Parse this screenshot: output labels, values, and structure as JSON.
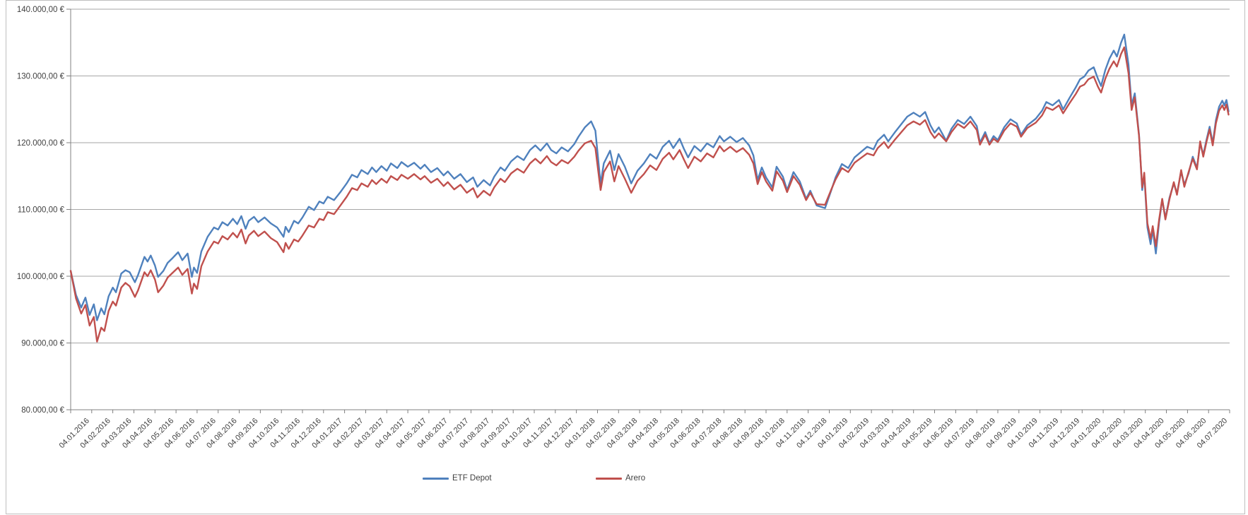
{
  "chart_data": {
    "type": "line",
    "title": "",
    "currency": "EUR",
    "value_unit": "thousand EUR",
    "grid": "horizontal-on",
    "legend_position": "bottom-center",
    "ylabel": "",
    "xlabel": "",
    "y_axis": {
      "min_k": 80,
      "max_k": 140,
      "step_k": 10,
      "tick_labels": [
        "140.000,00 €",
        "130.000,00 €",
        "120.000,00 €",
        "110.000,00 €",
        "100.000,00 €",
        "90.000,00 €",
        "80.000,00 €"
      ]
    },
    "x_axis": {
      "slot_count": 55,
      "tick_labels": [
        "04.01.2016",
        "04.02.2016",
        "04.03.2016",
        "04.04.2016",
        "04.05.2016",
        "04.06.2016",
        "04.07.2016",
        "04.08.2016",
        "04.09.2016",
        "04.10.2016",
        "04.11.2016",
        "04.12.2016",
        "04.01.2017",
        "04.02.2017",
        "04.03.2017",
        "04.04.2017",
        "04.05.2017",
        "04.06.2017",
        "04.07.2017",
        "04.08.2017",
        "04.09.2017",
        "04.10.2017",
        "04.11.2017",
        "04.12.2017",
        "04.01.2018",
        "04.02.2018",
        "04.03.2018",
        "04.04.2018",
        "04.05.2018",
        "04.06.2018",
        "04.07.2018",
        "04.08.2018",
        "04.09.2018",
        "04.10.2018",
        "04.11.2018",
        "04.12.2018",
        "04.01.2019",
        "04.02.2019",
        "04.03.2019",
        "04.04.2019",
        "04.05.2019",
        "04.06.2019",
        "04.07.2019",
        "04.08.2019",
        "04.09.2019",
        "04.10.2019",
        "04.11.2019",
        "04.12.2019",
        "04.01.2020",
        "04.02.2020",
        "04.03.2020",
        "04.04.2020",
        "04.05.2020",
        "04.06.2020",
        "04.07.2020"
      ]
    },
    "series": [
      {
        "name": "ETF Depot",
        "color": "#4F81BD"
      },
      {
        "name": "Arero",
        "color": "#C0504D"
      }
    ],
    "points_format": [
      "t_months_since_04.01.2016",
      "ETF Depot (k EUR)",
      "Arero (k EUR)"
    ],
    "points": [
      [
        0.0,
        100.8,
        100.8
      ],
      [
        0.25,
        97.2,
        96.7
      ],
      [
        0.5,
        95.3,
        94.4
      ],
      [
        0.7,
        96.8,
        95.7
      ],
      [
        0.9,
        94.2,
        92.6
      ],
      [
        1.1,
        95.8,
        93.9
      ],
      [
        1.25,
        93.4,
        90.2
      ],
      [
        1.45,
        95.2,
        92.3
      ],
      [
        1.6,
        94.3,
        91.8
      ],
      [
        1.8,
        97.0,
        94.8
      ],
      [
        2.0,
        98.3,
        96.2
      ],
      [
        2.15,
        97.6,
        95.6
      ],
      [
        2.4,
        100.4,
        98.3
      ],
      [
        2.6,
        100.9,
        99.0
      ],
      [
        2.8,
        100.6,
        98.5
      ],
      [
        3.05,
        99.1,
        96.9
      ],
      [
        3.2,
        100.2,
        97.9
      ],
      [
        3.5,
        102.9,
        100.6
      ],
      [
        3.65,
        102.2,
        100.0
      ],
      [
        3.8,
        103.1,
        100.9
      ],
      [
        4.0,
        101.6,
        99.5
      ],
      [
        4.15,
        99.9,
        97.6
      ],
      [
        4.4,
        100.8,
        98.6
      ],
      [
        4.6,
        102.0,
        99.8
      ],
      [
        4.8,
        102.6,
        100.4
      ],
      [
        5.1,
        103.6,
        101.3
      ],
      [
        5.3,
        102.4,
        100.2
      ],
      [
        5.55,
        103.4,
        101.1
      ],
      [
        5.75,
        99.9,
        97.4
      ],
      [
        5.85,
        101.3,
        98.9
      ],
      [
        6.0,
        100.5,
        98.1
      ],
      [
        6.2,
        103.7,
        101.5
      ],
      [
        6.5,
        105.9,
        103.7
      ],
      [
        6.8,
        107.3,
        105.2
      ],
      [
        7.0,
        107.0,
        104.9
      ],
      [
        7.2,
        108.1,
        106.0
      ],
      [
        7.45,
        107.6,
        105.5
      ],
      [
        7.7,
        108.6,
        106.5
      ],
      [
        7.9,
        107.8,
        105.8
      ],
      [
        8.1,
        109.0,
        107.0
      ],
      [
        8.3,
        107.1,
        104.9
      ],
      [
        8.45,
        108.3,
        106.1
      ],
      [
        8.7,
        108.9,
        106.8
      ],
      [
        8.9,
        108.1,
        106.0
      ],
      [
        9.2,
        108.8,
        106.7
      ],
      [
        9.5,
        107.9,
        105.7
      ],
      [
        9.8,
        107.3,
        105.1
      ],
      [
        10.1,
        105.9,
        103.6
      ],
      [
        10.2,
        107.4,
        105.0
      ],
      [
        10.35,
        106.6,
        104.1
      ],
      [
        10.6,
        108.3,
        105.5
      ],
      [
        10.8,
        107.9,
        105.2
      ],
      [
        11.0,
        108.8,
        106.1
      ],
      [
        11.3,
        110.4,
        107.6
      ],
      [
        11.55,
        109.9,
        107.3
      ],
      [
        11.8,
        111.2,
        108.6
      ],
      [
        12.0,
        110.9,
        108.4
      ],
      [
        12.2,
        111.9,
        109.6
      ],
      [
        12.5,
        111.4,
        109.3
      ],
      [
        12.8,
        112.6,
        110.6
      ],
      [
        13.1,
        113.9,
        111.9
      ],
      [
        13.35,
        115.2,
        113.2
      ],
      [
        13.6,
        114.8,
        112.9
      ],
      [
        13.8,
        115.9,
        113.9
      ],
      [
        14.1,
        115.3,
        113.4
      ],
      [
        14.3,
        116.3,
        114.4
      ],
      [
        14.5,
        115.6,
        113.8
      ],
      [
        14.75,
        116.5,
        114.6
      ],
      [
        15.0,
        115.8,
        114.0
      ],
      [
        15.2,
        116.9,
        115.0
      ],
      [
        15.5,
        116.2,
        114.4
      ],
      [
        15.7,
        117.1,
        115.2
      ],
      [
        16.0,
        116.4,
        114.6
      ],
      [
        16.3,
        117.0,
        115.3
      ],
      [
        16.6,
        116.1,
        114.5
      ],
      [
        16.8,
        116.7,
        115.0
      ],
      [
        17.1,
        115.6,
        114.0
      ],
      [
        17.4,
        116.2,
        114.6
      ],
      [
        17.7,
        115.1,
        113.5
      ],
      [
        17.9,
        115.7,
        114.1
      ],
      [
        18.2,
        114.6,
        113.0
      ],
      [
        18.5,
        115.3,
        113.7
      ],
      [
        18.8,
        114.1,
        112.5
      ],
      [
        19.1,
        114.8,
        113.2
      ],
      [
        19.3,
        113.4,
        111.8
      ],
      [
        19.6,
        114.4,
        112.8
      ],
      [
        19.9,
        113.6,
        112.1
      ],
      [
        20.1,
        114.9,
        113.3
      ],
      [
        20.4,
        116.3,
        114.6
      ],
      [
        20.6,
        115.8,
        114.1
      ],
      [
        20.9,
        117.2,
        115.4
      ],
      [
        21.2,
        118.0,
        116.1
      ],
      [
        21.5,
        117.4,
        115.5
      ],
      [
        21.8,
        118.9,
        116.9
      ],
      [
        22.05,
        119.6,
        117.6
      ],
      [
        22.3,
        118.8,
        116.9
      ],
      [
        22.6,
        119.9,
        118.0
      ],
      [
        22.8,
        118.9,
        117.1
      ],
      [
        23.05,
        118.4,
        116.6
      ],
      [
        23.3,
        119.3,
        117.4
      ],
      [
        23.6,
        118.7,
        116.9
      ],
      [
        23.9,
        119.8,
        117.9
      ],
      [
        24.1,
        120.9,
        118.8
      ],
      [
        24.4,
        122.3,
        119.9
      ],
      [
        24.7,
        123.2,
        120.3
      ],
      [
        24.9,
        121.8,
        119.2
      ],
      [
        25.15,
        113.8,
        112.9
      ],
      [
        25.3,
        116.9,
        115.6
      ],
      [
        25.6,
        118.8,
        117.2
      ],
      [
        25.8,
        115.9,
        114.2
      ],
      [
        26.0,
        118.3,
        116.5
      ],
      [
        26.3,
        116.4,
        114.6
      ],
      [
        26.6,
        113.9,
        112.5
      ],
      [
        26.9,
        115.8,
        114.3
      ],
      [
        27.2,
        116.9,
        115.3
      ],
      [
        27.5,
        118.3,
        116.6
      ],
      [
        27.8,
        117.6,
        115.9
      ],
      [
        28.1,
        119.4,
        117.6
      ],
      [
        28.4,
        120.3,
        118.5
      ],
      [
        28.6,
        119.2,
        117.5
      ],
      [
        28.9,
        120.6,
        118.9
      ],
      [
        29.1,
        119.1,
        117.5
      ],
      [
        29.3,
        117.8,
        116.2
      ],
      [
        29.6,
        119.5,
        117.9
      ],
      [
        29.9,
        118.7,
        117.2
      ],
      [
        30.2,
        119.9,
        118.4
      ],
      [
        30.5,
        119.3,
        117.8
      ],
      [
        30.8,
        121.0,
        119.5
      ],
      [
        31.0,
        120.2,
        118.7
      ],
      [
        31.3,
        120.9,
        119.4
      ],
      [
        31.6,
        120.1,
        118.6
      ],
      [
        31.9,
        120.7,
        119.2
      ],
      [
        32.2,
        119.6,
        118.2
      ],
      [
        32.4,
        118.1,
        116.9
      ],
      [
        32.6,
        114.4,
        113.8
      ],
      [
        32.8,
        116.3,
        115.6
      ],
      [
        33.0,
        114.8,
        114.2
      ],
      [
        33.3,
        113.3,
        112.8
      ],
      [
        33.5,
        116.4,
        115.7
      ],
      [
        33.8,
        114.9,
        114.3
      ],
      [
        34.0,
        112.9,
        112.6
      ],
      [
        34.3,
        115.6,
        115.0
      ],
      [
        34.6,
        114.2,
        113.7
      ],
      [
        34.9,
        111.6,
        111.4
      ],
      [
        35.1,
        112.8,
        112.5
      ],
      [
        35.4,
        110.6,
        110.8
      ],
      [
        35.8,
        110.2,
        110.7
      ],
      [
        36.1,
        112.9,
        113.0
      ],
      [
        36.3,
        114.8,
        114.5
      ],
      [
        36.6,
        116.8,
        116.2
      ],
      [
        36.9,
        116.2,
        115.6
      ],
      [
        37.2,
        117.8,
        117.0
      ],
      [
        37.5,
        118.6,
        117.7
      ],
      [
        37.8,
        119.4,
        118.4
      ],
      [
        38.1,
        119.0,
        118.1
      ],
      [
        38.3,
        120.3,
        119.2
      ],
      [
        38.6,
        121.2,
        120.1
      ],
      [
        38.8,
        120.2,
        119.2
      ],
      [
        39.1,
        121.5,
        120.4
      ],
      [
        39.4,
        122.7,
        121.5
      ],
      [
        39.7,
        123.9,
        122.6
      ],
      [
        40.0,
        124.5,
        123.2
      ],
      [
        40.3,
        123.9,
        122.7
      ],
      [
        40.55,
        124.6,
        123.4
      ],
      [
        40.8,
        122.6,
        121.6
      ],
      [
        41.0,
        121.5,
        120.7
      ],
      [
        41.2,
        122.3,
        121.4
      ],
      [
        41.55,
        120.3,
        120.2
      ],
      [
        41.8,
        122.1,
        121.6
      ],
      [
        42.1,
        123.4,
        122.8
      ],
      [
        42.4,
        122.8,
        122.2
      ],
      [
        42.7,
        123.9,
        123.2
      ],
      [
        43.0,
        122.5,
        121.9
      ],
      [
        43.15,
        120.0,
        119.7
      ],
      [
        43.4,
        121.6,
        121.2
      ],
      [
        43.6,
        119.9,
        119.7
      ],
      [
        43.8,
        121.0,
        120.6
      ],
      [
        44.0,
        120.4,
        120.1
      ],
      [
        44.3,
        122.3,
        121.8
      ],
      [
        44.6,
        123.5,
        122.9
      ],
      [
        44.9,
        122.9,
        122.4
      ],
      [
        45.1,
        121.2,
        120.9
      ],
      [
        45.4,
        122.6,
        122.2
      ],
      [
        45.8,
        123.6,
        123.0
      ],
      [
        46.1,
        124.8,
        124.1
      ],
      [
        46.3,
        126.1,
        125.3
      ],
      [
        46.6,
        125.6,
        124.9
      ],
      [
        46.9,
        126.4,
        125.6
      ],
      [
        47.1,
        125.0,
        124.4
      ],
      [
        47.4,
        126.7,
        125.9
      ],
      [
        47.7,
        128.3,
        127.3
      ],
      [
        47.9,
        129.5,
        128.4
      ],
      [
        48.1,
        129.9,
        128.7
      ],
      [
        48.3,
        130.8,
        129.5
      ],
      [
        48.55,
        131.3,
        129.9
      ],
      [
        48.75,
        129.6,
        128.4
      ],
      [
        48.9,
        128.5,
        127.5
      ],
      [
        49.1,
        130.9,
        129.6
      ],
      [
        49.3,
        132.6,
        131.1
      ],
      [
        49.5,
        133.8,
        132.2
      ],
      [
        49.65,
        132.9,
        131.4
      ],
      [
        49.85,
        135.0,
        133.3
      ],
      [
        50.0,
        136.2,
        134.3
      ],
      [
        50.2,
        131.7,
        130.4
      ],
      [
        50.35,
        125.6,
        124.9
      ],
      [
        50.5,
        127.4,
        126.8
      ],
      [
        50.7,
        121.2,
        121.0
      ],
      [
        50.85,
        112.9,
        113.3
      ],
      [
        50.95,
        115.2,
        115.5
      ],
      [
        51.1,
        107.3,
        107.9
      ],
      [
        51.25,
        104.8,
        105.6
      ],
      [
        51.35,
        107.0,
        107.5
      ],
      [
        51.5,
        103.4,
        104.5
      ],
      [
        51.65,
        108.0,
        108.4
      ],
      [
        51.8,
        111.5,
        111.6
      ],
      [
        51.95,
        108.7,
        108.5
      ],
      [
        52.15,
        111.8,
        111.6
      ],
      [
        52.35,
        113.9,
        114.1
      ],
      [
        52.5,
        112.4,
        112.2
      ],
      [
        52.7,
        115.7,
        115.9
      ],
      [
        52.85,
        113.7,
        113.4
      ],
      [
        53.05,
        115.4,
        115.6
      ],
      [
        53.25,
        117.9,
        117.6
      ],
      [
        53.45,
        116.2,
        116.0
      ],
      [
        53.6,
        119.9,
        120.2
      ],
      [
        53.75,
        118.2,
        117.9
      ],
      [
        53.9,
        120.4,
        120.1
      ],
      [
        54.05,
        122.4,
        122.0
      ],
      [
        54.2,
        119.9,
        119.6
      ],
      [
        54.35,
        123.4,
        122.9
      ],
      [
        54.5,
        125.4,
        124.8
      ],
      [
        54.65,
        126.3,
        125.6
      ],
      [
        54.75,
        125.6,
        124.9
      ],
      [
        54.85,
        126.4,
        125.7
      ],
      [
        54.95,
        124.7,
        124.2
      ]
    ],
    "colors": {
      "background": "#FFFFFF",
      "chart_border": "#BFBFBF",
      "gridline": "#A6A6A6",
      "axis_line": "#808080",
      "tick_label": "#404040",
      "series_etf": "#4F81BD",
      "series_arero": "#C0504D"
    }
  }
}
